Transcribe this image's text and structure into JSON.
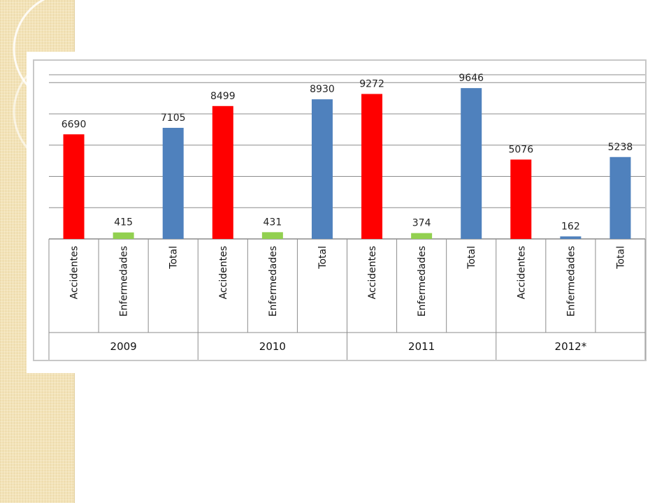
{
  "chart_data": {
    "type": "bar",
    "title": "",
    "xlabel": "",
    "ylabel": "",
    "ylim": [
      0,
      10500
    ],
    "grid": true,
    "gridline_step": 1000,
    "groups": [
      {
        "label": "2009",
        "bars": [
          {
            "category": "Accidentes",
            "value": 6690,
            "color": "#ff0000"
          },
          {
            "category": "Enfermedades",
            "value": 415,
            "color": "#92d050"
          },
          {
            "category": "Total",
            "value": 7105,
            "color": "#4f81bd"
          }
        ]
      },
      {
        "label": "2010",
        "bars": [
          {
            "category": "Accidentes",
            "value": 8499,
            "color": "#ff0000"
          },
          {
            "category": "Enfermedades",
            "value": 431,
            "color": "#92d050"
          },
          {
            "category": "Total",
            "value": 8930,
            "color": "#4f81bd"
          }
        ]
      },
      {
        "label": "2011",
        "bars": [
          {
            "category": "Accidentes",
            "value": 9272,
            "color": "#ff0000"
          },
          {
            "category": "Enfermedades",
            "value": 374,
            "color": "#92d050"
          },
          {
            "category": "Total",
            "value": 9646,
            "color": "#4f81bd"
          }
        ]
      },
      {
        "label": "2012*",
        "bars": [
          {
            "category": "Accidentes",
            "value": 5076,
            "color": "#ff0000"
          },
          {
            "category": "Enfermedades",
            "value": 162,
            "color": "#4f81bd"
          },
          {
            "category": "Total",
            "value": 5238,
            "color": "#4f81bd"
          }
        ]
      }
    ]
  }
}
